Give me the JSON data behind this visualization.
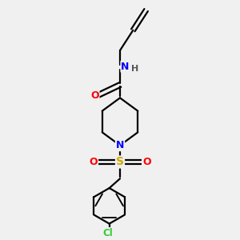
{
  "bg_color": "#f0f0f0",
  "bond_color": "#000000",
  "atom_colors": {
    "O": "#ff0000",
    "N_pip": "#0000ff",
    "N_amide": "#0000ff",
    "S": "#ccaa00",
    "Cl": "#33cc33",
    "H": "#555555"
  },
  "line_width": 1.6,
  "figsize": [
    3.0,
    3.0
  ],
  "dpi": 100,
  "xlim": [
    1.5,
    8.5
  ],
  "ylim": [
    0.5,
    10.5
  ]
}
